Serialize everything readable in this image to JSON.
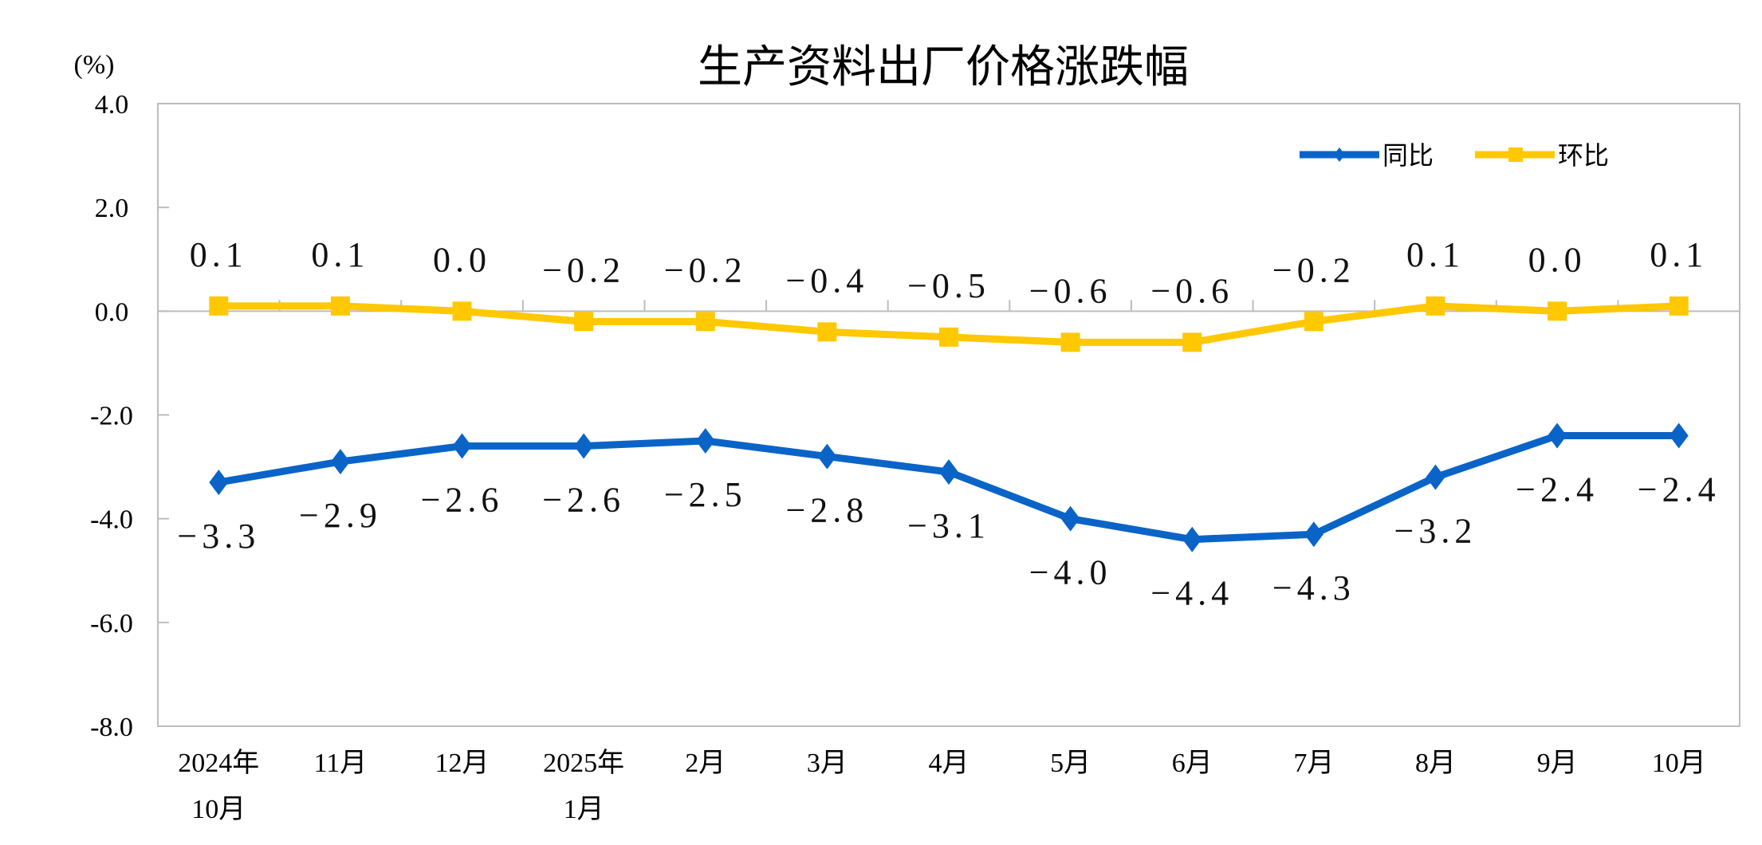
{
  "chart_data": {
    "type": "line",
    "title": "生产资料出厂价格涨跌幅",
    "ylabel": "(%)",
    "ylim": [
      -8.0,
      4.0
    ],
    "yticks": [
      "4.0",
      "2.0",
      "0.0",
      "-2.0",
      "-4.0",
      "-6.0",
      "-8.0"
    ],
    "ytick_values": [
      4,
      2,
      0,
      -2,
      -4,
      -6,
      -8
    ],
    "categories": [
      [
        "2024年",
        "10月"
      ],
      [
        "11月"
      ],
      [
        "12月"
      ],
      [
        "2025年",
        "1月"
      ],
      [
        "2月"
      ],
      [
        "3月"
      ],
      [
        "4月"
      ],
      [
        "5月"
      ],
      [
        "6月"
      ],
      [
        "7月"
      ],
      [
        "8月"
      ],
      [
        "9月"
      ],
      [
        "10月"
      ]
    ],
    "grid": "zero line only",
    "legend_placement": "top-right",
    "series": [
      {
        "name": "同比",
        "color": "#0A64C8",
        "marker": "diamond",
        "values": [
          -3.3,
          -2.9,
          -2.6,
          -2.6,
          -2.5,
          -2.8,
          -3.1,
          -4.0,
          -4.4,
          -4.3,
          -3.2,
          -2.4,
          -2.4
        ],
        "labels": [
          "-3.3",
          "-2.9",
          "-2.6",
          "-2.6",
          "-2.5",
          "-2.8",
          "-3.1",
          "-4.0",
          "-4.4",
          "-4.3",
          "-3.2",
          "-2.4",
          "-2.4"
        ]
      },
      {
        "name": "环比",
        "color": "#FFC800",
        "marker": "square",
        "values": [
          0.1,
          0.1,
          0.0,
          -0.2,
          -0.2,
          -0.4,
          -0.5,
          -0.6,
          -0.6,
          -0.2,
          0.1,
          0.0,
          0.1
        ],
        "labels": [
          "0.1",
          "0.1",
          "0.0",
          "-0.2",
          "-0.2",
          "-0.4",
          "-0.5",
          "-0.6",
          "-0.6",
          "-0.2",
          "0.1",
          "0.0",
          "0.1"
        ]
      }
    ]
  }
}
